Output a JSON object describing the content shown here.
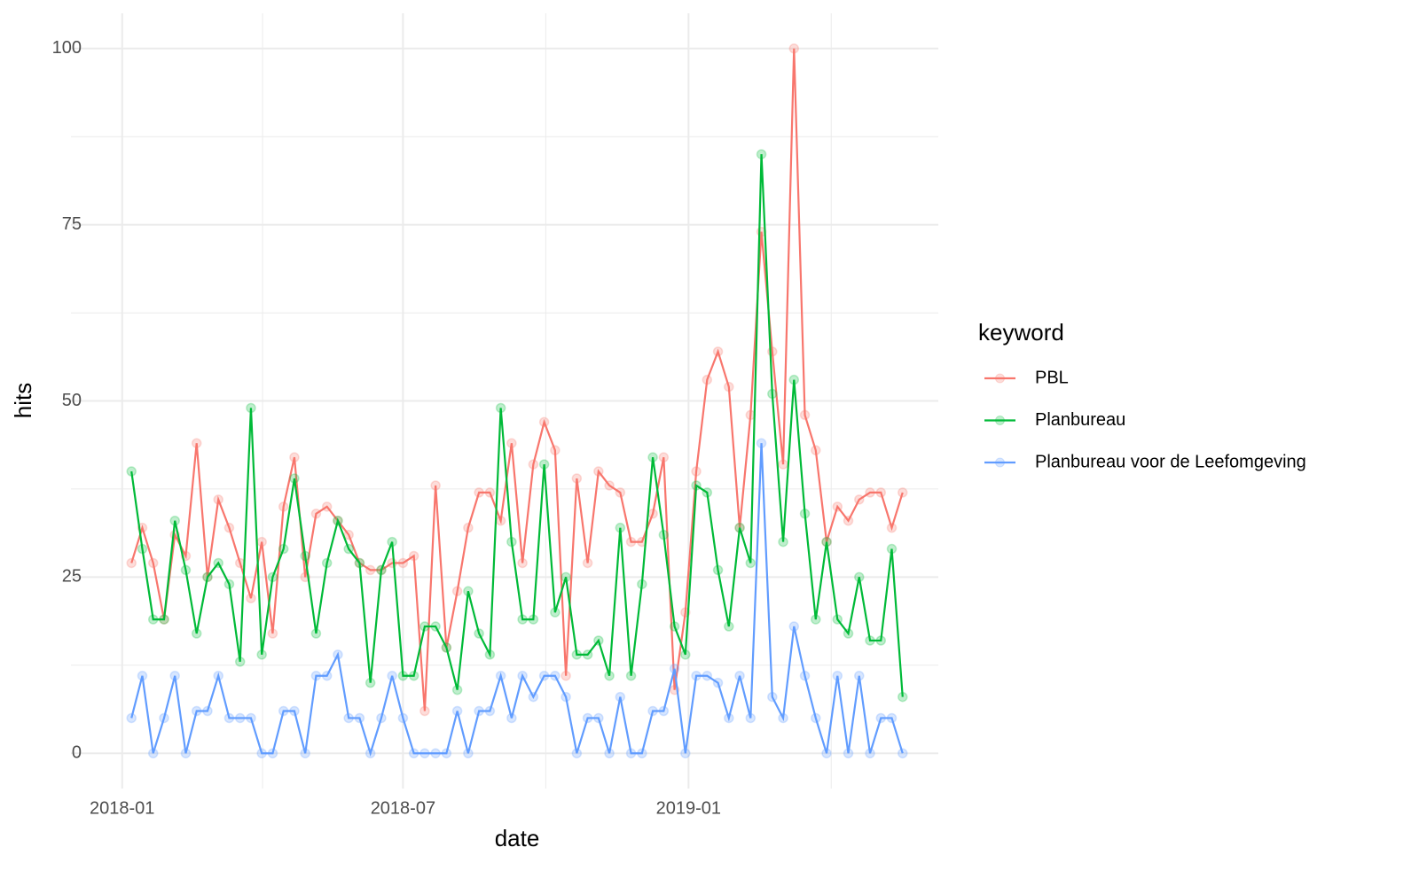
{
  "chart_data": {
    "type": "line",
    "x_label": "date",
    "y_label": "hits",
    "legend_title": "keyword",
    "legend_position": "right",
    "grid": true,
    "x": [
      "2018-01-07",
      "2018-01-14",
      "2018-01-21",
      "2018-01-28",
      "2018-02-04",
      "2018-02-11",
      "2018-02-18",
      "2018-02-25",
      "2018-03-04",
      "2018-03-11",
      "2018-03-18",
      "2018-03-25",
      "2018-04-01",
      "2018-04-08",
      "2018-04-15",
      "2018-04-22",
      "2018-04-29",
      "2018-05-06",
      "2018-05-13",
      "2018-05-20",
      "2018-05-27",
      "2018-06-03",
      "2018-06-10",
      "2018-06-17",
      "2018-06-24",
      "2018-07-01",
      "2018-07-08",
      "2018-07-15",
      "2018-07-22",
      "2018-07-29",
      "2018-08-05",
      "2018-08-12",
      "2018-08-19",
      "2018-08-26",
      "2018-09-02",
      "2018-09-09",
      "2018-09-16",
      "2018-09-23",
      "2018-09-30",
      "2018-10-07",
      "2018-10-14",
      "2018-10-21",
      "2018-10-28",
      "2018-11-04",
      "2018-11-11",
      "2018-11-18",
      "2018-11-25",
      "2018-12-02",
      "2018-12-09",
      "2018-12-16",
      "2018-12-23",
      "2018-12-30",
      "2019-01-06",
      "2019-01-13",
      "2019-01-20",
      "2019-01-27",
      "2019-02-03",
      "2019-02-10",
      "2019-02-17",
      "2019-02-24",
      "2019-03-03",
      "2019-03-10",
      "2019-03-17",
      "2019-03-24",
      "2019-03-31",
      "2019-04-07",
      "2019-04-14",
      "2019-04-21",
      "2019-04-28",
      "2019-05-05",
      "2019-05-12",
      "2019-05-19"
    ],
    "xlim": [
      "2017-11-29",
      "2019-06-11"
    ],
    "xticks": [
      {
        "value": "2018-01-01",
        "label": "2018-01"
      },
      {
        "value": "2018-07-01",
        "label": "2018-07"
      },
      {
        "value": "2019-01-01",
        "label": "2019-01"
      }
    ],
    "ylim": [
      -5,
      105
    ],
    "yticks": [
      0,
      25,
      50,
      75,
      100
    ],
    "series": [
      {
        "name": "PBL",
        "color": "#F8766D",
        "values": [
          27,
          32,
          27,
          19,
          31,
          28,
          44,
          25,
          36,
          32,
          27,
          22,
          30,
          17,
          35,
          42,
          25,
          34,
          35,
          33,
          31,
          27,
          26,
          26,
          27,
          27,
          28,
          6,
          38,
          15,
          23,
          32,
          37,
          37,
          33,
          44,
          27,
          41,
          47,
          43,
          11,
          39,
          27,
          40,
          38,
          37,
          30,
          30,
          34,
          42,
          9,
          20,
          40,
          53,
          57,
          52,
          32,
          48,
          74,
          57,
          41,
          100,
          48,
          43,
          30,
          35,
          33,
          36,
          37,
          37,
          32,
          37
        ]
      },
      {
        "name": "Planbureau",
        "color": "#00BA38",
        "values": [
          40,
          29,
          19,
          19,
          33,
          26,
          17,
          25,
          27,
          24,
          13,
          49,
          14,
          25,
          29,
          39,
          28,
          17,
          27,
          33,
          29,
          27,
          10,
          26,
          30,
          11,
          11,
          18,
          18,
          15,
          9,
          23,
          17,
          14,
          49,
          30,
          19,
          19,
          41,
          20,
          25,
          14,
          14,
          16,
          11,
          32,
          11,
          24,
          42,
          31,
          18,
          14,
          38,
          37,
          26,
          18,
          32,
          27,
          85,
          51,
          30,
          53,
          34,
          19,
          30,
          19,
          17,
          25,
          16,
          16,
          29,
          8
        ]
      },
      {
        "name": "Planbureau voor de Leefomgeving",
        "color": "#619CFF",
        "values": [
          5,
          11,
          0,
          5,
          11,
          0,
          6,
          6,
          11,
          5,
          5,
          5,
          0,
          0,
          6,
          6,
          0,
          11,
          11,
          14,
          5,
          5,
          0,
          5,
          11,
          5,
          0,
          0,
          0,
          0,
          6,
          0,
          6,
          6,
          11,
          5,
          11,
          8,
          11,
          11,
          8,
          0,
          5,
          5,
          0,
          8,
          0,
          0,
          6,
          6,
          12,
          0,
          11,
          11,
          10,
          5,
          11,
          5,
          44,
          8,
          5,
          18,
          11,
          5,
          0,
          11,
          0,
          11,
          0,
          5,
          5,
          0
        ]
      }
    ]
  }
}
